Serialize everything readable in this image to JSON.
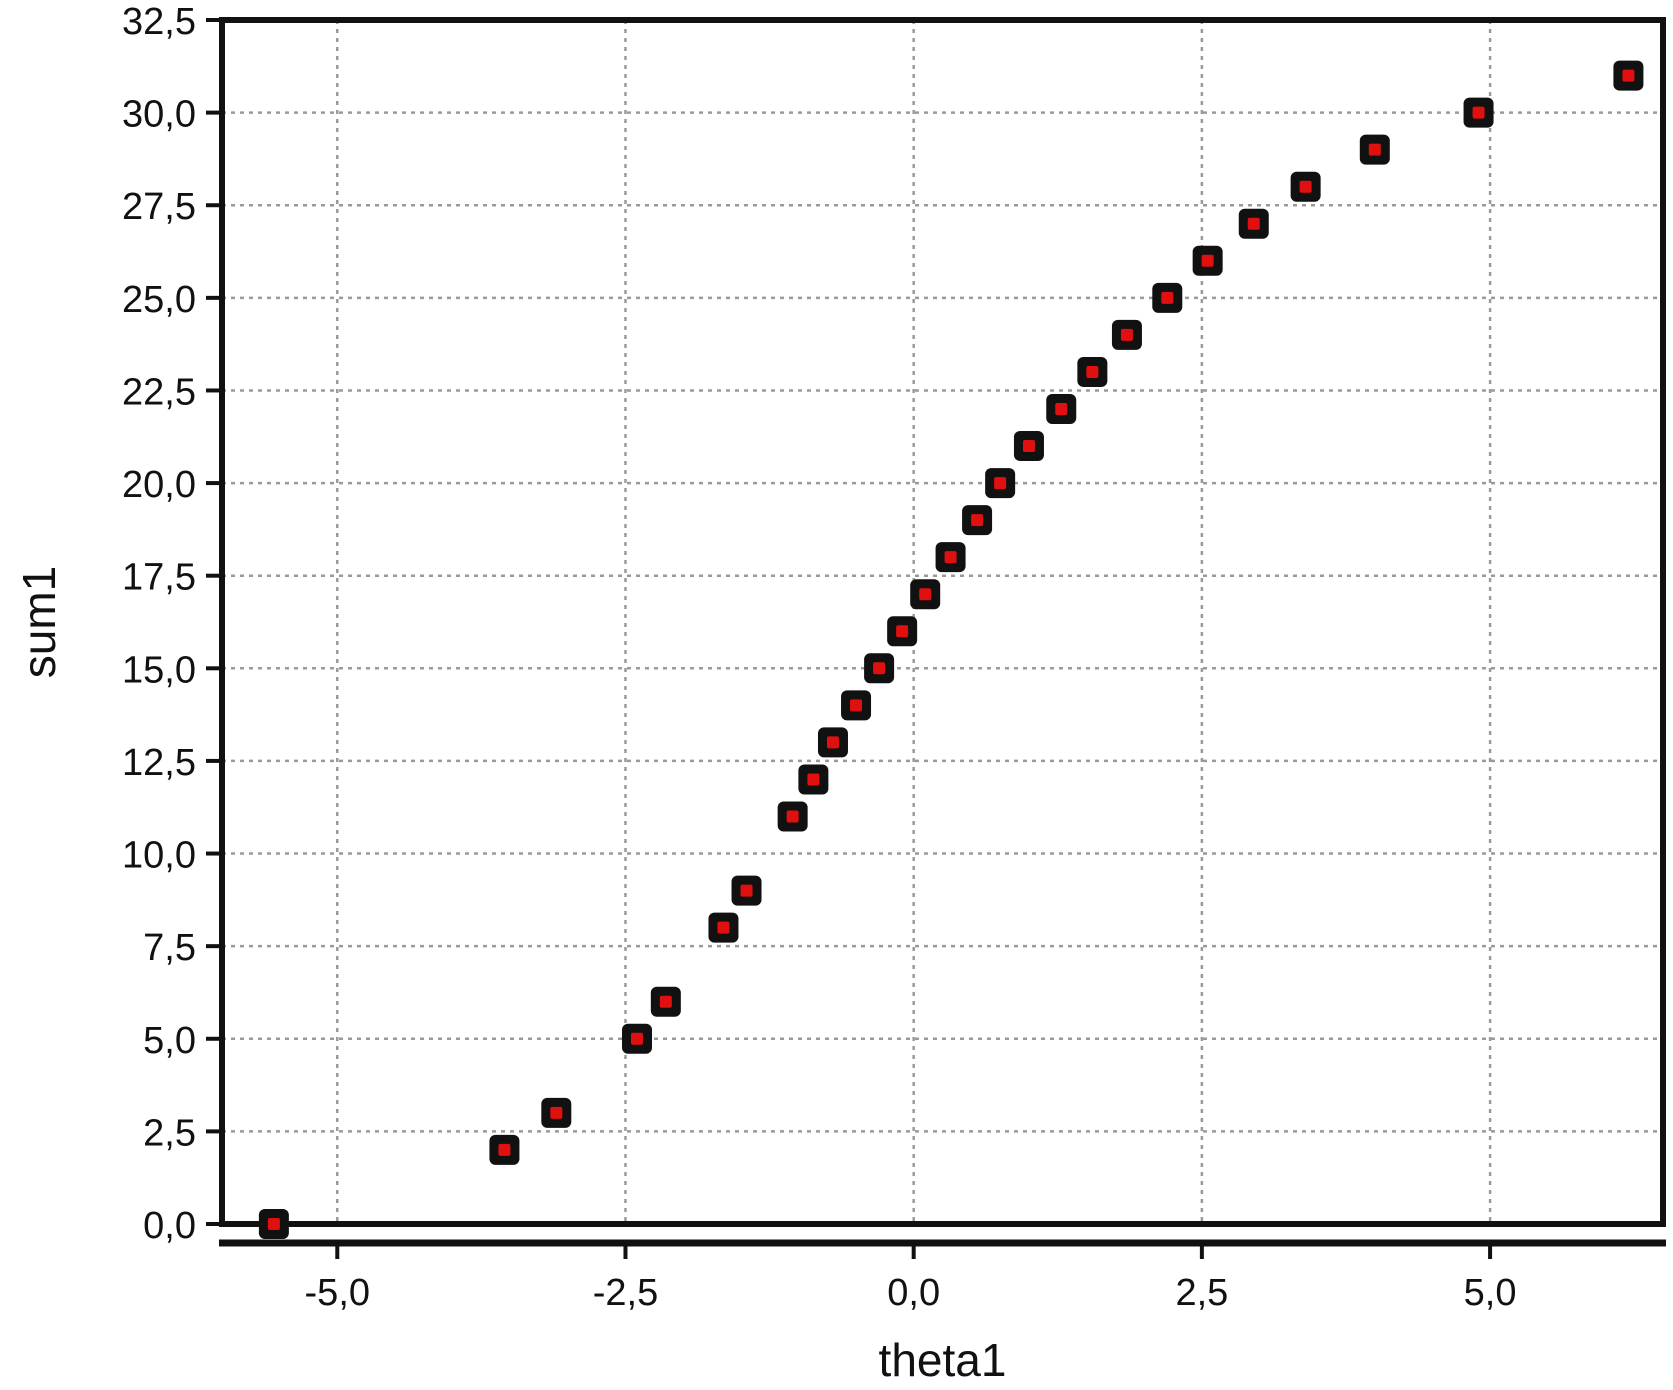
{
  "chart_data": {
    "type": "scatter",
    "title": "",
    "xlabel": "theta1",
    "ylabel": "sum1",
    "xlim": [
      -6.0,
      6.5
    ],
    "ylim": [
      0,
      32.5
    ],
    "x_ticks": [
      -5.0,
      -2.5,
      0.0,
      2.5,
      5.0
    ],
    "x_tick_labels": [
      "-5,0",
      "-2,5",
      "0,0",
      "2,5",
      "5,0"
    ],
    "y_ticks": [
      0,
      2.5,
      5,
      7.5,
      10,
      12.5,
      15,
      17.5,
      20,
      22.5,
      25,
      27.5,
      30,
      32.5
    ],
    "y_tick_labels": [
      "0,0",
      "2,5",
      "5,0",
      "7,5",
      "10,0",
      "12,5",
      "15,0",
      "17,5",
      "20,0",
      "22,5",
      "25,0",
      "27,5",
      "30,0",
      "32,5"
    ],
    "grid": true,
    "marker_color": "#e01010",
    "marker_edge_color": "#111111",
    "series": [
      {
        "points": [
          {
            "x": -5.55,
            "y": 0
          },
          {
            "x": -3.55,
            "y": 2
          },
          {
            "x": -3.1,
            "y": 3
          },
          {
            "x": -2.4,
            "y": 5
          },
          {
            "x": -2.15,
            "y": 6
          },
          {
            "x": -1.65,
            "y": 8
          },
          {
            "x": -1.45,
            "y": 9
          },
          {
            "x": -1.05,
            "y": 11
          },
          {
            "x": -0.87,
            "y": 12
          },
          {
            "x": -0.7,
            "y": 13
          },
          {
            "x": -0.5,
            "y": 14
          },
          {
            "x": -0.3,
            "y": 15
          },
          {
            "x": -0.1,
            "y": 16
          },
          {
            "x": 0.1,
            "y": 17
          },
          {
            "x": 0.32,
            "y": 18
          },
          {
            "x": 0.55,
            "y": 19
          },
          {
            "x": 0.75,
            "y": 20
          },
          {
            "x": 1.0,
            "y": 21
          },
          {
            "x": 1.28,
            "y": 22
          },
          {
            "x": 1.55,
            "y": 23
          },
          {
            "x": 1.85,
            "y": 24
          },
          {
            "x": 2.2,
            "y": 25
          },
          {
            "x": 2.55,
            "y": 26
          },
          {
            "x": 2.95,
            "y": 27
          },
          {
            "x": 3.4,
            "y": 28
          },
          {
            "x": 4.0,
            "y": 29
          },
          {
            "x": 4.9,
            "y": 30
          },
          {
            "x": 6.2,
            "y": 31
          }
        ]
      }
    ]
  }
}
